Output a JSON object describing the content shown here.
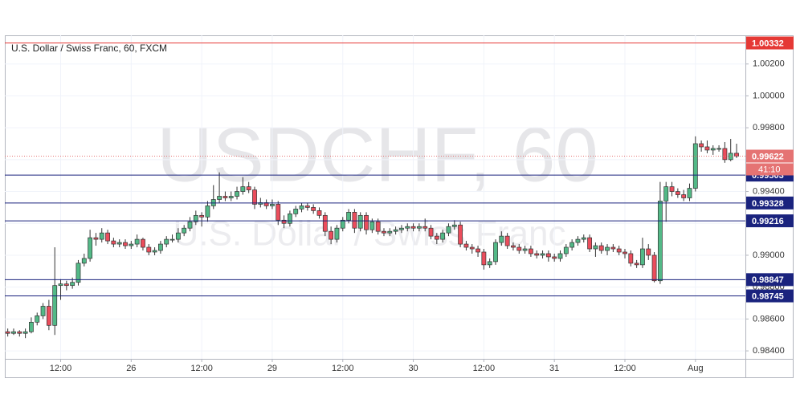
{
  "chart_data": {
    "type": "candlestick",
    "title": "U.S. Dollar / Swiss Franc, 60, FXCM",
    "watermark": "USDCHF, 60",
    "watermark_subtitle": "U.S. Dollar / Swiss Franc",
    "up_color": "#53b987",
    "down_color": "#eb4d5c",
    "opens": [
      0.9852,
      0.9851,
      0.9852,
      0.9851,
      0.9852,
      0.9858,
      0.9862,
      0.9868,
      0.9856,
      0.9881,
      0.9882,
      0.9881,
      0.9883,
      0.9895,
      0.9898,
      0.9911,
      0.991,
      0.9914,
      0.9909,
      0.9907,
      0.9908,
      0.9906,
      0.9907,
      0.991,
      0.9905,
      0.9902,
      0.9903,
      0.9907,
      0.991,
      0.991,
      0.9914,
      0.9917,
      0.9921,
      0.9925,
      0.9924,
      0.9931,
      0.9935,
      0.9937,
      0.9936,
      0.9937,
      0.994,
      0.9943,
      0.9941,
      0.9932,
      0.9933,
      0.9931,
      0.9932,
      0.9922,
      0.992,
      0.9926,
      0.9929,
      0.9931,
      0.993,
      0.9928,
      0.9925,
      0.9915,
      0.991,
      0.9917,
      0.9922,
      0.9927,
      0.9917,
      0.9925,
      0.9916,
      0.9921,
      0.9915,
      0.9914,
      0.9915,
      0.9916,
      0.9917,
      0.9918,
      0.9917,
      0.9918,
      0.9917,
      0.9912,
      0.991,
      0.9914,
      0.9918,
      0.9919,
      0.9907,
      0.9905,
      0.9904,
      0.9902,
      0.9894,
      0.9896,
      0.9908,
      0.9912,
      0.9906,
      0.9905,
      0.9903,
      0.9904,
      0.9901,
      0.99,
      0.9901,
      0.9899,
      0.9898,
      0.9901,
      0.9905,
      0.9908,
      0.991,
      0.9911,
      0.9904,
      0.9906,
      0.9903,
      0.9905,
      0.9904,
      0.9902,
      0.9901,
      0.9895,
      0.9894,
      0.9904,
      0.99,
      0.9884,
      0.9934,
      0.9943,
      0.994,
      0.9938,
      0.9936,
      0.9942,
      0.997,
      0.9968,
      0.9966,
      0.9967,
      0.9967,
      0.996,
      0.9964
    ],
    "highs": [
      0.9854,
      0.9854,
      0.9853,
      0.9854,
      0.9861,
      0.9864,
      0.987,
      0.9872,
      0.9905,
      0.9885,
      0.9884,
      0.9886,
      0.9897,
      0.9901,
      0.9916,
      0.9914,
      0.9917,
      0.9916,
      0.9911,
      0.991,
      0.991,
      0.9909,
      0.9913,
      0.9911,
      0.9907,
      0.9905,
      0.9909,
      0.9912,
      0.9913,
      0.9917,
      0.9919,
      0.9924,
      0.9928,
      0.9927,
      0.9934,
      0.9944,
      0.9952,
      0.994,
      0.994,
      0.9943,
      0.9949,
      0.9946,
      0.9943,
      0.9936,
      0.9935,
      0.9935,
      0.9934,
      0.9925,
      0.9928,
      0.9931,
      0.9933,
      0.9933,
      0.9932,
      0.993,
      0.9927,
      0.9918,
      0.9919,
      0.9924,
      0.9929,
      0.9929,
      0.9927,
      0.9927,
      0.9923,
      0.9923,
      0.9917,
      0.9917,
      0.9918,
      0.9919,
      0.992,
      0.992,
      0.992,
      0.9923,
      0.9919,
      0.9914,
      0.9916,
      0.992,
      0.9922,
      0.9921,
      0.9909,
      0.9907,
      0.9906,
      0.9904,
      0.9898,
      0.991,
      0.9915,
      0.9914,
      0.9908,
      0.9907,
      0.9906,
      0.9906,
      0.9903,
      0.9903,
      0.9903,
      0.9901,
      0.9903,
      0.9907,
      0.991,
      0.9912,
      0.9913,
      0.9913,
      0.9908,
      0.9908,
      0.9907,
      0.9907,
      0.9906,
      0.9904,
      0.9903,
      0.9897,
      0.9911,
      0.9907,
      0.9902,
      0.9946,
      0.9946,
      0.9946,
      0.9942,
      0.9941,
      0.9945,
      0.99746,
      0.9972,
      0.9972,
      0.9969,
      0.9969,
      0.9971,
      0.9973,
      0.997
    ],
    "lows": [
      0.9849,
      0.985,
      0.9849,
      0.9848,
      0.9851,
      0.9856,
      0.986,
      0.9853,
      0.985,
      0.9872,
      0.9878,
      0.9879,
      0.9881,
      0.9893,
      0.9896,
      0.9906,
      0.9908,
      0.9907,
      0.9905,
      0.9905,
      0.9904,
      0.9904,
      0.9905,
      0.9903,
      0.99,
      0.99,
      0.9901,
      0.9905,
      0.9908,
      0.9908,
      0.9912,
      0.9915,
      0.9919,
      0.9918,
      0.9921,
      0.9929,
      0.9933,
      0.9934,
      0.9934,
      0.9935,
      0.9938,
      0.9939,
      0.9929,
      0.993,
      0.9929,
      0.9929,
      0.9919,
      0.9917,
      0.9918,
      0.9924,
      0.9927,
      0.9928,
      0.9926,
      0.9923,
      0.9912,
      0.9907,
      0.9908,
      0.9915,
      0.992,
      0.9914,
      0.9915,
      0.9913,
      0.9914,
      0.9913,
      0.9912,
      0.9912,
      0.9913,
      0.9914,
      0.9915,
      0.9915,
      0.9915,
      0.9915,
      0.991,
      0.9907,
      0.9908,
      0.9912,
      0.9916,
      0.9905,
      0.9903,
      0.9901,
      0.9899,
      0.9891,
      0.9892,
      0.9894,
      0.9906,
      0.9904,
      0.9903,
      0.9901,
      0.9901,
      0.9899,
      0.9898,
      0.9898,
      0.9896,
      0.9896,
      0.9896,
      0.9899,
      0.9903,
      0.9906,
      0.9908,
      0.9902,
      0.9899,
      0.9901,
      0.99,
      0.9902,
      0.99,
      0.9898,
      0.9893,
      0.9892,
      0.9892,
      0.9897,
      0.9883,
      0.9882,
      0.9921,
      0.9937,
      0.9936,
      0.9934,
      0.9934,
      0.994,
      0.9965,
      0.9964,
      0.9963,
      0.9965,
      0.9958,
      0.9959,
      0.9961
    ],
    "closes": [
      0.9851,
      0.9852,
      0.9851,
      0.9852,
      0.9858,
      0.9862,
      0.9868,
      0.9856,
      0.9881,
      0.9882,
      0.9881,
      0.9883,
      0.9895,
      0.9898,
      0.9911,
      0.991,
      0.9914,
      0.9909,
      0.9907,
      0.9908,
      0.9906,
      0.9907,
      0.991,
      0.9905,
      0.9902,
      0.9903,
      0.9907,
      0.991,
      0.991,
      0.9914,
      0.9917,
      0.9921,
      0.9925,
      0.9924,
      0.9931,
      0.9935,
      0.9937,
      0.9936,
      0.9937,
      0.994,
      0.9943,
      0.9941,
      0.9932,
      0.9933,
      0.9931,
      0.9932,
      0.9922,
      0.992,
      0.9926,
      0.9929,
      0.9931,
      0.993,
      0.9928,
      0.9925,
      0.9915,
      0.991,
      0.9917,
      0.9922,
      0.9927,
      0.9917,
      0.9925,
      0.9916,
      0.9921,
      0.9915,
      0.9914,
      0.9915,
      0.9916,
      0.9917,
      0.9918,
      0.9917,
      0.9918,
      0.9917,
      0.9912,
      0.991,
      0.9914,
      0.9918,
      0.9919,
      0.9907,
      0.9905,
      0.9904,
      0.9902,
      0.9894,
      0.9896,
      0.9908,
      0.9912,
      0.9906,
      0.9905,
      0.9903,
      0.9904,
      0.9901,
      0.99,
      0.9901,
      0.9899,
      0.9898,
      0.9901,
      0.9905,
      0.9908,
      0.991,
      0.9911,
      0.9904,
      0.9906,
      0.9903,
      0.9905,
      0.9904,
      0.9902,
      0.9901,
      0.9895,
      0.9894,
      0.9904,
      0.99,
      0.9884,
      0.9934,
      0.9943,
      0.994,
      0.9938,
      0.9936,
      0.9942,
      0.997,
      0.9968,
      0.9966,
      0.9967,
      0.9967,
      0.996,
      0.9964,
      0.99622
    ],
    "xlim": [
      -0.5,
      125.5
    ],
    "xticks": [
      {
        "value": 9,
        "label": "12:00"
      },
      {
        "value": 21,
        "label": "26"
      },
      {
        "value": 33,
        "label": "12:00"
      },
      {
        "value": 45,
        "label": "29"
      },
      {
        "value": 57,
        "label": "12:00"
      },
      {
        "value": 69,
        "label": "30"
      },
      {
        "value": 81,
        "label": "12:00"
      },
      {
        "value": 93,
        "label": "31"
      },
      {
        "value": 105,
        "label": "12:00"
      },
      {
        "value": 117,
        "label": "Aug"
      }
    ],
    "ylim": [
      0.9835,
      1.0038
    ],
    "yticks": [
      {
        "value": 0.984,
        "label": "0.98400"
      },
      {
        "value": 0.986,
        "label": "0.98600"
      },
      {
        "value": 0.988,
        "label": "0.98800"
      },
      {
        "value": 0.99,
        "label": "0.99000"
      },
      {
        "value": 0.992,
        "label": "0.99200"
      },
      {
        "value": 0.994,
        "label": "0.99400"
      },
      {
        "value": 0.996,
        "label": "0.99600"
      },
      {
        "value": 0.998,
        "label": "0.99800"
      },
      {
        "value": 1.0,
        "label": "1.00000"
      },
      {
        "value": 1.002,
        "label": "1.00200"
      }
    ],
    "levels": [
      {
        "value": 1.00332,
        "color": "#e53935"
      },
      {
        "value": 0.99503,
        "color": "#1a237e"
      },
      {
        "value": 0.99328,
        "color": "#1a237e"
      },
      {
        "value": 0.99216,
        "color": "#1a237e"
      },
      {
        "value": 0.98847,
        "color": "#1a237e"
      },
      {
        "value": 0.98745,
        "color": "#1a237e"
      }
    ],
    "last_price_color": "#e57373",
    "countdown": "41:10"
  }
}
